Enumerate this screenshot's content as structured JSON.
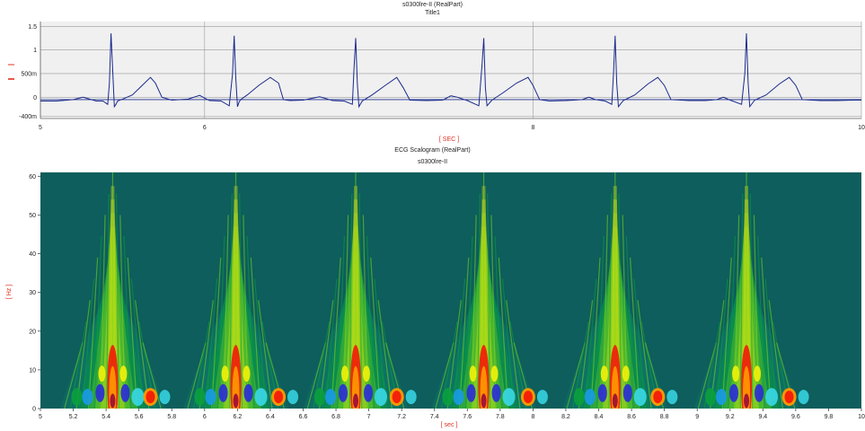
{
  "charts_title": {
    "top_title": "s0300lre-II (RealPart)",
    "top_subtitle": "Title1",
    "bottom_title": "ECG Scalogram (RealPart)",
    "bottom_subtitle": "s0300lre-II"
  },
  "chart_data": [
    {
      "type": "line",
      "title": "s0300lre-II (RealPart)",
      "subtitle": "Title1",
      "xlabel": "[ SEC ]",
      "ylabel": "",
      "xlim": [
        5,
        10
      ],
      "ylim": [
        -0.45,
        1.6
      ],
      "x_ticks": [
        5,
        6,
        8,
        10
      ],
      "x_tick_labels": [
        "5",
        "6",
        "8",
        "10"
      ],
      "y_ticks": [
        1.5,
        1,
        0.5,
        0,
        -0.4
      ],
      "y_tick_labels": [
        "1.5",
        "1",
        "500m",
        "0",
        "-400m"
      ],
      "reference_line_y": -0.05,
      "grid": true,
      "line_color": "#1a2a8c",
      "r_peaks": [
        5.44,
        6.19,
        6.92,
        7.7,
        8.5,
        9.3
      ],
      "series": [
        {
          "name": "",
          "x": [
            5.0,
            5.1,
            5.2,
            5.26,
            5.3,
            5.34,
            5.38,
            5.41,
            5.42,
            5.43,
            5.44,
            5.45,
            5.46,
            5.47,
            5.5,
            5.56,
            5.62,
            5.67,
            5.7,
            5.74,
            5.8,
            5.9,
            5.97,
            6.0,
            6.03,
            6.1,
            6.15,
            6.17,
            6.18,
            6.19,
            6.2,
            6.21,
            6.22,
            6.26,
            6.33,
            6.4,
            6.45,
            6.48,
            6.52,
            6.6,
            6.7,
            6.74,
            6.78,
            6.85,
            6.9,
            6.91,
            6.92,
            6.93,
            6.94,
            6.96,
            7.02,
            7.1,
            7.17,
            7.21,
            7.25,
            7.35,
            7.45,
            7.5,
            7.54,
            7.6,
            7.67,
            7.69,
            7.7,
            7.71,
            7.72,
            7.75,
            7.82,
            7.9,
            7.97,
            8.0,
            8.04,
            8.1,
            8.2,
            8.3,
            8.34,
            8.38,
            8.44,
            8.48,
            8.49,
            8.5,
            8.51,
            8.52,
            8.55,
            8.62,
            8.7,
            8.76,
            8.8,
            8.84,
            8.95,
            9.05,
            9.12,
            9.16,
            9.2,
            9.27,
            9.29,
            9.3,
            9.31,
            9.32,
            9.35,
            9.42,
            9.5,
            9.56,
            9.6,
            9.64,
            9.75,
            9.85,
            9.95,
            10.0
          ],
          "y": [
            -0.08,
            -0.08,
            -0.05,
            0.0,
            -0.04,
            -0.08,
            -0.08,
            -0.15,
            0.3,
            1.35,
            0.6,
            -0.2,
            -0.15,
            -0.08,
            -0.04,
            0.05,
            0.25,
            0.42,
            0.3,
            0.0,
            -0.06,
            -0.04,
            0.04,
            -0.02,
            -0.07,
            -0.08,
            -0.18,
            0.5,
            1.3,
            0.4,
            -0.2,
            -0.1,
            -0.05,
            0.05,
            0.25,
            0.42,
            0.3,
            -0.05,
            -0.07,
            -0.06,
            0.01,
            -0.03,
            -0.07,
            -0.08,
            -0.15,
            0.6,
            1.25,
            0.3,
            -0.2,
            -0.08,
            0.05,
            0.25,
            0.42,
            0.2,
            -0.06,
            -0.07,
            -0.06,
            0.03,
            0.0,
            -0.07,
            -0.18,
            0.7,
            1.25,
            0.2,
            -0.18,
            -0.06,
            0.1,
            0.3,
            0.42,
            0.25,
            -0.05,
            -0.08,
            -0.07,
            -0.05,
            0.0,
            -0.05,
            -0.08,
            -0.15,
            0.5,
            1.3,
            0.3,
            -0.2,
            -0.07,
            0.05,
            0.28,
            0.42,
            0.25,
            -0.05,
            -0.07,
            -0.07,
            -0.05,
            0.0,
            -0.06,
            -0.15,
            0.5,
            1.35,
            0.3,
            -0.2,
            -0.06,
            0.05,
            0.28,
            0.42,
            0.25,
            -0.05,
            -0.07,
            -0.07,
            -0.06,
            -0.06
          ]
        }
      ]
    },
    {
      "type": "heatmap",
      "title": "ECG Scalogram (RealPart)",
      "subtitle": "s0300lre-II",
      "xlabel": "[ sec ]",
      "ylabel": "[ Hz ]",
      "xlim": [
        5,
        10
      ],
      "ylim": [
        0,
        61
      ],
      "x_ticks": [
        5,
        5.2,
        5.4,
        5.6,
        5.8,
        6,
        6.2,
        6.4,
        6.6,
        6.8,
        7,
        7.2,
        7.4,
        7.6,
        7.8,
        8,
        8.2,
        8.4,
        8.6,
        8.8,
        9,
        9.2,
        9.4,
        9.6,
        9.8,
        10
      ],
      "x_tick_labels": [
        "5",
        "5.2",
        "5.4",
        "5.6",
        "5.8",
        "6",
        "6.2",
        "6.4",
        "6.6",
        "6.8",
        "7",
        "7.2",
        "7.4",
        "7.6",
        "7.8",
        "8",
        "8.2",
        "8.4",
        "8.6",
        "8.8",
        "9",
        "9.2",
        "9.4",
        "9.6",
        "9.8",
        "10"
      ],
      "y_ticks": [
        0,
        10,
        20,
        30,
        40,
        50,
        60
      ],
      "y_tick_labels": [
        "0",
        "10",
        "20",
        "30",
        "40",
        "50",
        "60"
      ],
      "colormap": [
        "#0b5a5a",
        "#0f7a6a",
        "#0aa03c",
        "#7fd81a",
        "#f2f20a",
        "#ff9a00",
        "#f21a0a",
        "#9a0a3a",
        "#7a1ac8",
        "#2a2ad8",
        "#1a9ae8",
        "#3ad8e8"
      ],
      "background_color": "#0d5e5c",
      "event_times": [
        5.44,
        6.19,
        6.92,
        7.7,
        8.5,
        9.3
      ],
      "t_wave_times": [
        5.67,
        6.45,
        7.17,
        7.97,
        8.76,
        9.56
      ]
    }
  ]
}
